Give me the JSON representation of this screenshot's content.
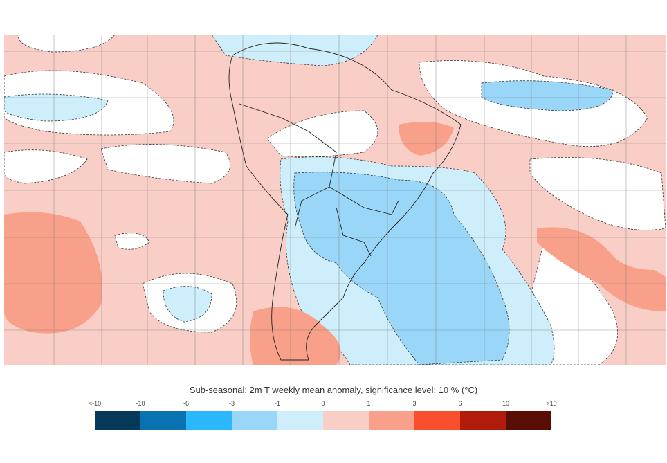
{
  "title": "Sub-seasonal: 2m T weekly mean anomaly, significance level: 10 % (°C)",
  "legend": {
    "tick_labels": [
      "<-10",
      "-10",
      "-6",
      "-3",
      "-1",
      "0",
      "1",
      "3",
      "6",
      "10",
      ">10"
    ],
    "colors": [
      "#06385a",
      "#0873b0",
      "#2bb8fa",
      "#99d6f8",
      "#cdeefa",
      "#ffffff",
      "#f9cec6",
      "#f9a08a",
      "#fa4f2f",
      "#b01b0b",
      "#5a0d04"
    ]
  },
  "map": {
    "region": "South America",
    "background_color": "#f9cec6",
    "neutral_color": "#ffffff",
    "gridlines": true
  }
}
